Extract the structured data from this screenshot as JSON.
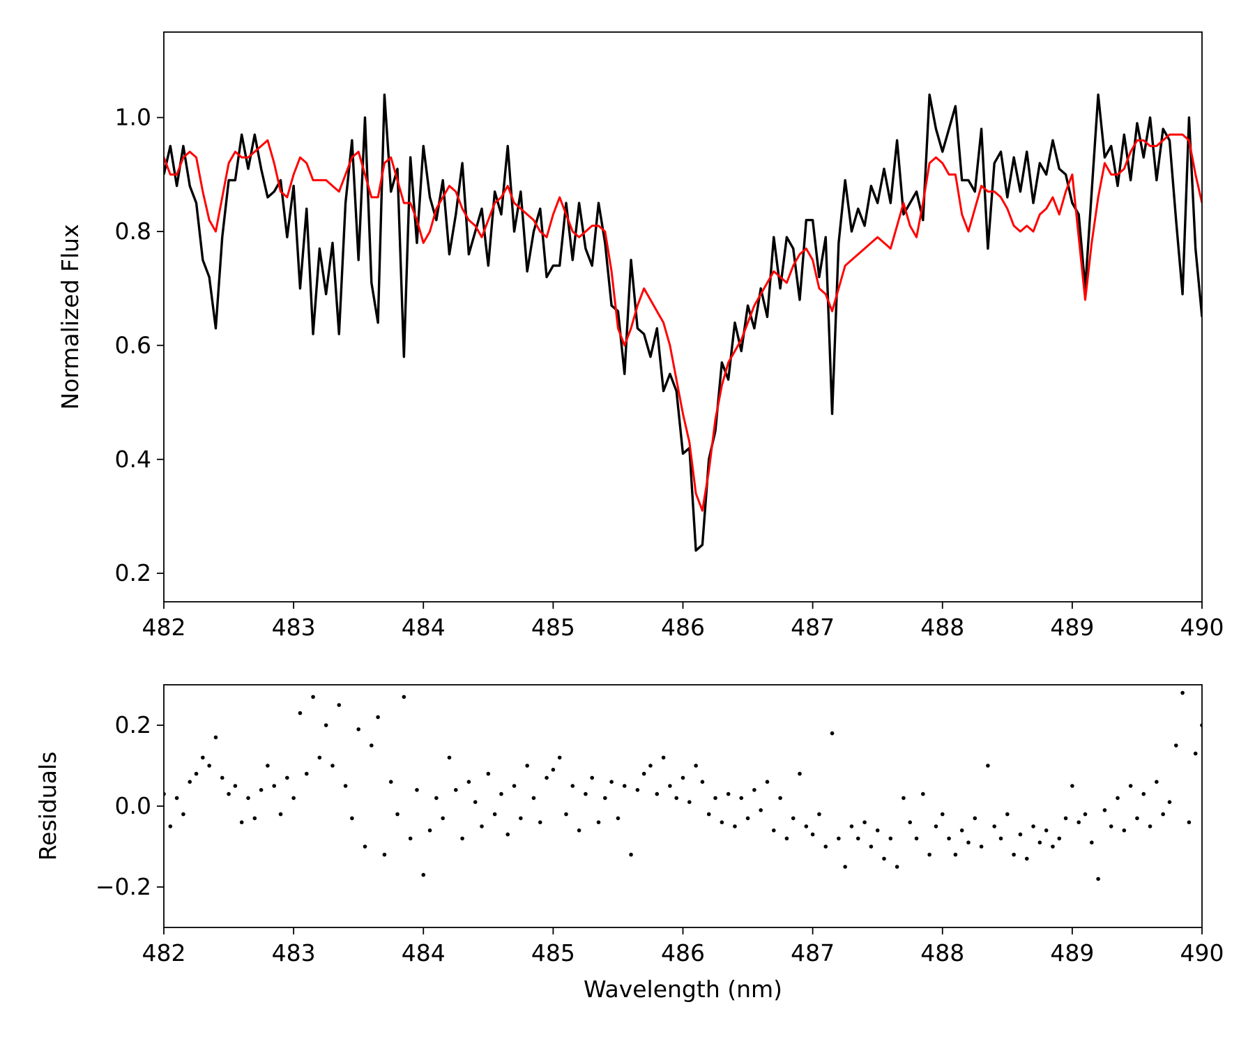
{
  "chart_data": [
    {
      "type": "line",
      "ylabel": "Normalized Flux",
      "x": [
        482.0,
        482.05,
        482.1,
        482.15,
        482.2,
        482.25,
        482.3,
        482.35,
        482.4,
        482.45,
        482.5,
        482.55,
        482.6,
        482.65,
        482.7,
        482.75,
        482.8,
        482.85,
        482.9,
        482.95,
        483.0,
        483.05,
        483.1,
        483.15,
        483.2,
        483.25,
        483.3,
        483.35,
        483.4,
        483.45,
        483.5,
        483.55,
        483.6,
        483.65,
        483.7,
        483.75,
        483.8,
        483.85,
        483.9,
        483.95,
        484.0,
        484.05,
        484.1,
        484.15,
        484.2,
        484.25,
        484.3,
        484.35,
        484.4,
        484.45,
        484.5,
        484.55,
        484.6,
        484.65,
        484.7,
        484.75,
        484.8,
        484.85,
        484.9,
        484.95,
        485.0,
        485.05,
        485.1,
        485.15,
        485.2,
        485.25,
        485.3,
        485.35,
        485.4,
        485.45,
        485.5,
        485.55,
        485.6,
        485.65,
        485.7,
        485.75,
        485.8,
        485.85,
        485.9,
        485.95,
        486.0,
        486.05,
        486.1,
        486.15,
        486.2,
        486.25,
        486.3,
        486.35,
        486.4,
        486.45,
        486.5,
        486.55,
        486.6,
        486.65,
        486.7,
        486.75,
        486.8,
        486.85,
        486.9,
        486.95,
        487.0,
        487.05,
        487.1,
        487.15,
        487.2,
        487.25,
        487.3,
        487.35,
        487.4,
        487.45,
        487.5,
        487.55,
        487.6,
        487.65,
        487.7,
        487.75,
        487.8,
        487.85,
        487.9,
        487.95,
        488.0,
        488.05,
        488.1,
        488.15,
        488.2,
        488.25,
        488.3,
        488.35,
        488.4,
        488.45,
        488.5,
        488.55,
        488.6,
        488.65,
        488.7,
        488.75,
        488.8,
        488.85,
        488.9,
        488.95,
        489.0,
        489.05,
        489.1,
        489.15,
        489.2,
        489.25,
        489.3,
        489.35,
        489.4,
        489.45,
        489.5,
        489.55,
        489.6,
        489.65,
        489.7,
        489.75,
        489.8,
        489.85,
        489.9,
        489.95,
        490.0
      ],
      "series": [
        {
          "color": "#000000",
          "values": [
            0.9,
            0.95,
            0.88,
            0.95,
            0.88,
            0.85,
            0.75,
            0.72,
            0.63,
            0.79,
            0.89,
            0.89,
            0.97,
            0.91,
            0.97,
            0.91,
            0.86,
            0.87,
            0.89,
            0.79,
            0.88,
            0.7,
            0.84,
            0.62,
            0.77,
            0.69,
            0.78,
            0.62,
            0.85,
            0.96,
            0.75,
            1.0,
            0.71,
            0.64,
            1.04,
            0.87,
            0.91,
            0.58,
            0.93,
            0.78,
            0.95,
            0.86,
            0.82,
            0.89,
            0.76,
            0.83,
            0.92,
            0.76,
            0.8,
            0.84,
            0.74,
            0.87,
            0.83,
            0.95,
            0.8,
            0.87,
            0.73,
            0.8,
            0.84,
            0.72,
            0.74,
            0.74,
            0.85,
            0.75,
            0.85,
            0.77,
            0.74,
            0.85,
            0.78,
            0.67,
            0.66,
            0.55,
            0.75,
            0.63,
            0.62,
            0.58,
            0.63,
            0.52,
            0.55,
            0.52,
            0.41,
            0.42,
            0.24,
            0.25,
            0.4,
            0.45,
            0.57,
            0.54,
            0.64,
            0.59,
            0.67,
            0.63,
            0.7,
            0.65,
            0.79,
            0.7,
            0.79,
            0.77,
            0.68,
            0.82,
            0.82,
            0.72,
            0.79,
            0.48,
            0.78,
            0.89,
            0.8,
            0.84,
            0.81,
            0.88,
            0.85,
            0.91,
            0.85,
            0.96,
            0.83,
            0.85,
            0.87,
            0.82,
            1.04,
            0.98,
            0.94,
            0.98,
            1.02,
            0.89,
            0.89,
            0.87,
            0.98,
            0.77,
            0.92,
            0.94,
            0.86,
            0.93,
            0.87,
            0.94,
            0.85,
            0.92,
            0.9,
            0.96,
            0.91,
            0.9,
            0.85,
            0.83,
            0.7,
            0.87,
            1.04,
            0.93,
            0.95,
            0.88,
            0.97,
            0.89,
            0.99,
            0.93,
            1.0,
            0.89,
            0.98,
            0.96,
            0.82,
            0.69,
            1.0,
            0.77,
            0.65
          ]
        },
        {
          "color": "#ff0000",
          "values": [
            0.93,
            0.9,
            0.9,
            0.93,
            0.94,
            0.93,
            0.87,
            0.82,
            0.8,
            0.86,
            0.92,
            0.94,
            0.93,
            0.93,
            0.94,
            0.95,
            0.96,
            0.92,
            0.87,
            0.86,
            0.9,
            0.93,
            0.92,
            0.89,
            0.89,
            0.89,
            0.88,
            0.87,
            0.9,
            0.93,
            0.94,
            0.9,
            0.86,
            0.86,
            0.92,
            0.93,
            0.89,
            0.85,
            0.85,
            0.82,
            0.78,
            0.8,
            0.84,
            0.86,
            0.88,
            0.87,
            0.84,
            0.82,
            0.81,
            0.79,
            0.82,
            0.85,
            0.86,
            0.88,
            0.85,
            0.84,
            0.83,
            0.82,
            0.8,
            0.79,
            0.83,
            0.86,
            0.83,
            0.8,
            0.79,
            0.8,
            0.81,
            0.81,
            0.8,
            0.73,
            0.63,
            0.6,
            0.63,
            0.67,
            0.7,
            0.68,
            0.66,
            0.64,
            0.6,
            0.54,
            0.48,
            0.43,
            0.34,
            0.31,
            0.38,
            0.47,
            0.53,
            0.57,
            0.59,
            0.61,
            0.64,
            0.67,
            0.69,
            0.71,
            0.73,
            0.72,
            0.71,
            0.74,
            0.76,
            0.77,
            0.75,
            0.7,
            0.69,
            0.66,
            0.7,
            0.74,
            0.75,
            0.76,
            0.77,
            0.78,
            0.79,
            0.78,
            0.77,
            0.81,
            0.85,
            0.81,
            0.79,
            0.85,
            0.92,
            0.93,
            0.92,
            0.9,
            0.9,
            0.83,
            0.8,
            0.84,
            0.88,
            0.87,
            0.87,
            0.86,
            0.84,
            0.81,
            0.8,
            0.81,
            0.8,
            0.83,
            0.84,
            0.86,
            0.83,
            0.87,
            0.9,
            0.79,
            0.68,
            0.78,
            0.86,
            0.92,
            0.9,
            0.9,
            0.91,
            0.94,
            0.96,
            0.96,
            0.95,
            0.95,
            0.96,
            0.97,
            0.97,
            0.97,
            0.96,
            0.9,
            0.85
          ]
        }
      ],
      "xlim": [
        482,
        490
      ],
      "xticks": [
        482,
        483,
        484,
        485,
        486,
        487,
        488,
        489,
        490
      ],
      "ylim": [
        0.15,
        1.15
      ],
      "yticks": [
        0.2,
        0.4,
        0.6,
        0.8,
        {
          "value": 1.0,
          "label": "1.0"
        }
      ]
    },
    {
      "type": "scatter",
      "xlabel": "Wavelength (nm)",
      "ylabel": "Residuals",
      "color": "#000000",
      "x": [
        482.0,
        482.05,
        482.1,
        482.15,
        482.2,
        482.25,
        482.3,
        482.35,
        482.4,
        482.45,
        482.5,
        482.55,
        482.6,
        482.65,
        482.7,
        482.75,
        482.8,
        482.85,
        482.9,
        482.95,
        483.0,
        483.05,
        483.1,
        483.15,
        483.2,
        483.25,
        483.3,
        483.35,
        483.4,
        483.45,
        483.5,
        483.55,
        483.6,
        483.65,
        483.7,
        483.75,
        483.8,
        483.85,
        483.9,
        483.95,
        484.0,
        484.05,
        484.1,
        484.15,
        484.2,
        484.25,
        484.3,
        484.35,
        484.4,
        484.45,
        484.5,
        484.55,
        484.6,
        484.65,
        484.7,
        484.75,
        484.8,
        484.85,
        484.9,
        484.95,
        485.0,
        485.05,
        485.1,
        485.15,
        485.2,
        485.25,
        485.3,
        485.35,
        485.4,
        485.45,
        485.5,
        485.55,
        485.6,
        485.65,
        485.7,
        485.75,
        485.8,
        485.85,
        485.9,
        485.95,
        486.0,
        486.05,
        486.1,
        486.15,
        486.2,
        486.25,
        486.3,
        486.35,
        486.4,
        486.45,
        486.5,
        486.55,
        486.6,
        486.65,
        486.7,
        486.75,
        486.8,
        486.85,
        486.9,
        486.95,
        487.0,
        487.05,
        487.1,
        487.15,
        487.2,
        487.25,
        487.3,
        487.35,
        487.4,
        487.45,
        487.5,
        487.55,
        487.6,
        487.65,
        487.7,
        487.75,
        487.8,
        487.85,
        487.9,
        487.95,
        488.0,
        488.05,
        488.1,
        488.15,
        488.2,
        488.25,
        488.3,
        488.35,
        488.4,
        488.45,
        488.5,
        488.55,
        488.6,
        488.65,
        488.7,
        488.75,
        488.8,
        488.85,
        488.9,
        488.95,
        489.0,
        489.05,
        489.1,
        489.15,
        489.2,
        489.25,
        489.3,
        489.35,
        489.4,
        489.45,
        489.5,
        489.55,
        489.6,
        489.65,
        489.7,
        489.75,
        489.8,
        489.85,
        489.9,
        489.95,
        490.0
      ],
      "values": [
        0.03,
        -0.05,
        0.02,
        -0.02,
        0.06,
        0.08,
        0.12,
        0.1,
        0.17,
        0.07,
        0.03,
        0.05,
        -0.04,
        0.02,
        -0.03,
        0.04,
        0.1,
        0.05,
        -0.02,
        0.07,
        0.02,
        0.23,
        0.08,
        0.27,
        0.12,
        0.2,
        0.1,
        0.25,
        0.05,
        -0.03,
        0.19,
        -0.1,
        0.15,
        0.22,
        -0.12,
        0.06,
        -0.02,
        0.27,
        -0.08,
        0.04,
        -0.17,
        -0.06,
        0.02,
        -0.03,
        0.12,
        0.04,
        -0.08,
        0.06,
        0.01,
        -0.05,
        0.08,
        -0.02,
        0.03,
        -0.07,
        0.05,
        -0.03,
        0.1,
        0.02,
        -0.04,
        0.07,
        0.09,
        0.12,
        -0.02,
        0.05,
        -0.06,
        0.03,
        0.07,
        -0.04,
        0.02,
        0.06,
        -0.03,
        0.05,
        -0.12,
        0.04,
        0.08,
        0.1,
        0.03,
        0.12,
        0.05,
        0.02,
        0.07,
        0.01,
        0.1,
        0.06,
        -0.02,
        0.02,
        -0.04,
        0.03,
        -0.05,
        0.02,
        -0.03,
        0.04,
        -0.01,
        0.06,
        -0.06,
        0.02,
        -0.08,
        -0.03,
        0.08,
        -0.05,
        -0.07,
        -0.02,
        -0.1,
        0.18,
        -0.08,
        -0.15,
        -0.05,
        -0.08,
        -0.04,
        -0.1,
        -0.06,
        -0.13,
        -0.08,
        -0.15,
        0.02,
        -0.04,
        -0.08,
        0.03,
        -0.12,
        -0.05,
        -0.02,
        -0.08,
        -0.12,
        -0.06,
        -0.09,
        -0.03,
        -0.1,
        0.1,
        -0.05,
        -0.08,
        -0.02,
        -0.12,
        -0.07,
        -0.13,
        -0.05,
        -0.09,
        -0.06,
        -0.1,
        -0.08,
        -0.03,
        0.05,
        -0.04,
        -0.02,
        -0.09,
        -0.18,
        -0.01,
        -0.05,
        0.02,
        -0.06,
        0.05,
        -0.03,
        0.03,
        -0.05,
        0.06,
        -0.02,
        0.01,
        0.15,
        0.28,
        -0.04,
        0.13,
        0.2
      ],
      "xlim": [
        482,
        490
      ],
      "xticks": [
        482,
        483,
        484,
        485,
        486,
        487,
        488,
        489,
        490
      ],
      "ylim": [
        -0.3,
        0.3
      ],
      "yticks": [
        {
          "value": -0.2,
          "label": "−0.2"
        },
        {
          "value": 0.0,
          "label": "0.0"
        },
        0.2
      ]
    }
  ]
}
